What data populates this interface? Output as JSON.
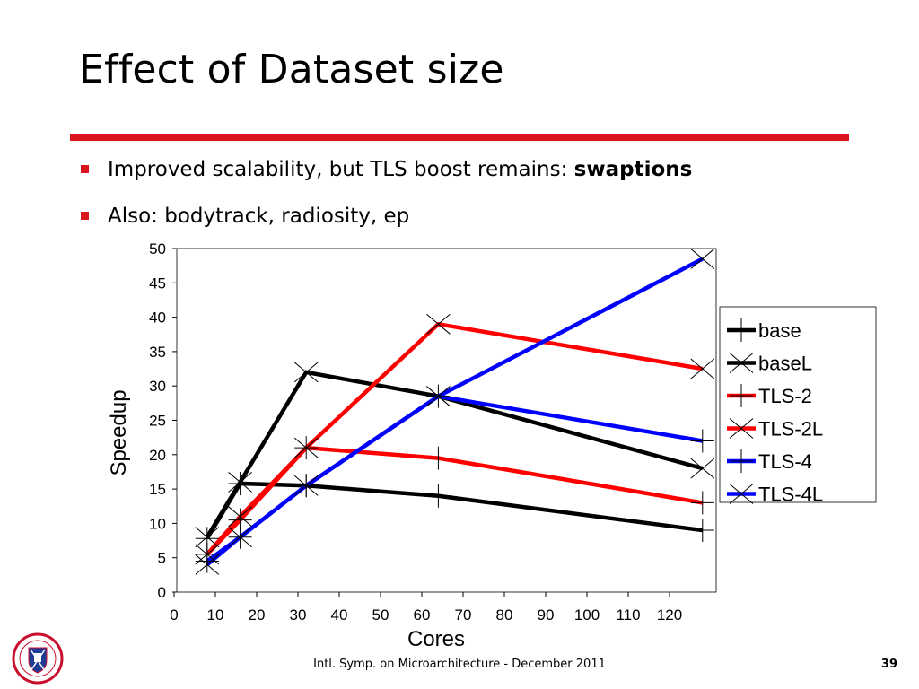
{
  "slide": {
    "title": "Effect of Dataset size",
    "bullets": [
      {
        "text": "Improved scalability, but TLS boost remains: ",
        "bold": "swaptions"
      },
      {
        "text": "Also: bodytrack, radiosity, ep",
        "bold": ""
      }
    ],
    "footer": "Intl. Symp. on Microarchitecture - December 2011",
    "page_number": "39",
    "accent_color": "#d9141c",
    "logo_icon": "university-of-edinburgh-crest-icon"
  },
  "chart_data": {
    "type": "line",
    "title": "",
    "xlabel": "Cores",
    "ylabel": "Speedup",
    "xlim": [
      0,
      130
    ],
    "ylim": [
      0,
      50
    ],
    "xticks": [
      0,
      10,
      20,
      30,
      40,
      50,
      60,
      70,
      80,
      90,
      100,
      110,
      120
    ],
    "yticks": [
      0,
      5,
      10,
      15,
      20,
      25,
      30,
      35,
      40,
      45,
      50
    ],
    "legend_position": "right",
    "series": [
      {
        "name": "base",
        "color": "#000000",
        "marker": "plus",
        "x": [
          8,
          16,
          32,
          64,
          128
        ],
        "y": [
          7.8,
          15.8,
          15.5,
          14.0,
          9.0
        ]
      },
      {
        "name": "baseL",
        "color": "#000000",
        "marker": "cross",
        "x": [
          8,
          16,
          32,
          64,
          128
        ],
        "y": [
          8.0,
          16.0,
          32.0,
          28.5,
          18.0
        ]
      },
      {
        "name": "TLS-2",
        "color": "#ff0000",
        "marker": "plus",
        "x": [
          8,
          16,
          32,
          64,
          128
        ],
        "y": [
          5.5,
          10.5,
          21.0,
          19.5,
          13.0
        ]
      },
      {
        "name": "TLS-2L",
        "color": "#ff0000",
        "marker": "cross",
        "x": [
          8,
          16,
          32,
          64,
          128
        ],
        "y": [
          5.5,
          11.0,
          21.0,
          39.0,
          32.5
        ]
      },
      {
        "name": "TLS-4",
        "color": "#0000ff",
        "marker": "plus",
        "x": [
          8,
          16,
          32,
          64,
          128
        ],
        "y": [
          4.5,
          8.0,
          15.5,
          28.5,
          22.0
        ]
      },
      {
        "name": "TLS-4L",
        "color": "#0000ff",
        "marker": "cross",
        "x": [
          8,
          16,
          32,
          64,
          128
        ],
        "y": [
          4.0,
          8.0,
          15.5,
          28.5,
          48.5
        ]
      }
    ]
  }
}
